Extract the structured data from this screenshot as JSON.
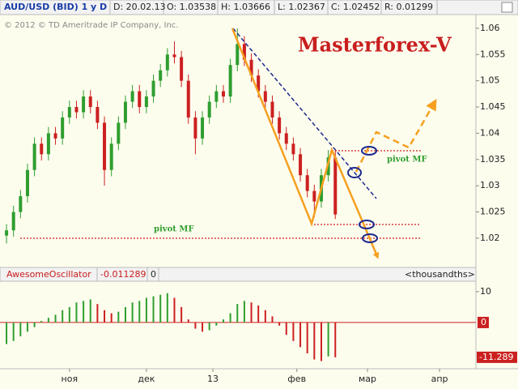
{
  "chart_data": {
    "type": "candlestick",
    "header": {
      "symbol": "AUD/USD (BID) 1 y D",
      "date": "D: 20.02.13",
      "open": "O: 1.03538",
      "high": "H: 1.03666",
      "low": "L: 1.02367",
      "close": "C: 1.02452",
      "range": "R: 0.01299"
    },
    "copyright": "© 2012 © TD Ameritrade IP Company, Inc.",
    "annotation": "Masterforex-V",
    "pivot_labels": [
      "pivot MF",
      "pivot MF"
    ],
    "up_color": "#2f9e2f",
    "down_color": "#cc2020",
    "open": [
      1.0205,
      1.0215,
      1.025,
      1.028,
      1.033,
      1.038,
      1.036,
      1.04,
      1.039,
      1.043,
      1.045,
      1.044,
      1.047,
      1.045,
      1.042,
      1.033,
      1.038,
      1.042,
      1.046,
      1.048,
      1.045,
      1.047,
      1.05,
      1.052,
      1.055,
      1.0545,
      1.05,
      1.043,
      1.039,
      1.043,
      1.046,
      1.048,
      1.047,
      1.053,
      1.057,
      1.054,
      1.051,
      1.048,
      1.046,
      1.043,
      1.04,
      1.038,
      1.036,
      1.032,
      1.029,
      1.027,
      1.032,
      1.03538
    ],
    "high": [
      1.0227,
      1.0262,
      1.0292,
      1.0342,
      1.0392,
      1.0392,
      1.0412,
      1.0412,
      1.0442,
      1.0462,
      1.0462,
      1.0482,
      1.0482,
      1.0462,
      1.0432,
      1.0392,
      1.0432,
      1.0472,
      1.0492,
      1.0492,
      1.0482,
      1.0512,
      1.0532,
      1.0562,
      1.0575,
      1.0557,
      1.0512,
      1.0442,
      1.0442,
      1.0472,
      1.0492,
      1.0492,
      1.0542,
      1.06,
      1.0585,
      1.0552,
      1.0522,
      1.0492,
      1.0472,
      1.0442,
      1.0412,
      1.0392,
      1.0372,
      1.0332,
      1.0302,
      1.0332,
      1.0368,
      1.03666
    ],
    "low": [
      1.019,
      1.0203,
      1.0238,
      1.0268,
      1.0318,
      1.0348,
      1.0348,
      1.0378,
      1.0378,
      1.0418,
      1.0428,
      1.0428,
      1.0438,
      1.0408,
      1.03,
      1.0318,
      1.0368,
      1.0408,
      1.0448,
      1.0438,
      1.0438,
      1.0458,
      1.0488,
      1.0508,
      1.0533,
      1.0488,
      1.0418,
      1.036,
      1.0378,
      1.0418,
      1.0448,
      1.0458,
      1.0458,
      1.0518,
      1.0528,
      1.0498,
      1.0468,
      1.0448,
      1.0418,
      1.0388,
      1.0368,
      1.0348,
      1.0308,
      1.0278,
      1.024,
      1.0258,
      1.0308,
      1.02367
    ],
    "close": [
      1.0215,
      1.025,
      1.028,
      1.033,
      1.038,
      1.036,
      1.04,
      1.039,
      1.043,
      1.045,
      1.044,
      1.047,
      1.045,
      1.042,
      1.033,
      1.038,
      1.042,
      1.046,
      1.048,
      1.045,
      1.047,
      1.05,
      1.052,
      1.055,
      1.0545,
      1.05,
      1.043,
      1.039,
      1.043,
      1.046,
      1.048,
      1.047,
      1.053,
      1.057,
      1.054,
      1.051,
      1.048,
      1.046,
      1.043,
      1.04,
      1.038,
      1.036,
      1.032,
      1.029,
      1.027,
      1.032,
      1.0354,
      1.02452
    ],
    "ylim": [
      1.0152,
      1.0623
    ],
    "yticks": [
      1.02,
      1.025,
      1.03,
      1.035,
      1.04,
      1.045,
      1.05,
      1.055,
      1.06
    ],
    "xlim": [
      -0.93,
      67.1
    ],
    "xticks": [
      {
        "value": 9,
        "label": "ноя"
      },
      {
        "value": 20,
        "label": "дек"
      },
      {
        "value": 29.5,
        "label": "13"
      },
      {
        "value": 41.5,
        "label": "фев"
      },
      {
        "value": 51.6,
        "label": "мар"
      },
      {
        "value": 61.9,
        "label": "апр"
      }
    ],
    "oscillator": {
      "name": "AwesomeOscillator",
      "value_text": "-0.011289",
      "param": "0",
      "units": "<thousandths>",
      "up_color": "#2f9e2f",
      "down_color": "#cc2020",
      "zero_color": "#cc2020",
      "values": [
        -7,
        -6,
        -4.5,
        -3,
        -1.5,
        0.5,
        1.5,
        2.5,
        4,
        5,
        6.5,
        7,
        7.5,
        6,
        4,
        3,
        3.5,
        5,
        6.5,
        7,
        8,
        8.5,
        9,
        9.5,
        8,
        5,
        1,
        -2,
        -3,
        -2.5,
        -1,
        1,
        3,
        6,
        7,
        6.5,
        5.5,
        4,
        2,
        -1,
        -4,
        -6,
        -8,
        -10,
        -12,
        -12.5,
        -11,
        -11.289
      ],
      "ylim": [
        -15,
        12.6
      ],
      "yticks": [
        10,
        0
      ]
    }
  }
}
